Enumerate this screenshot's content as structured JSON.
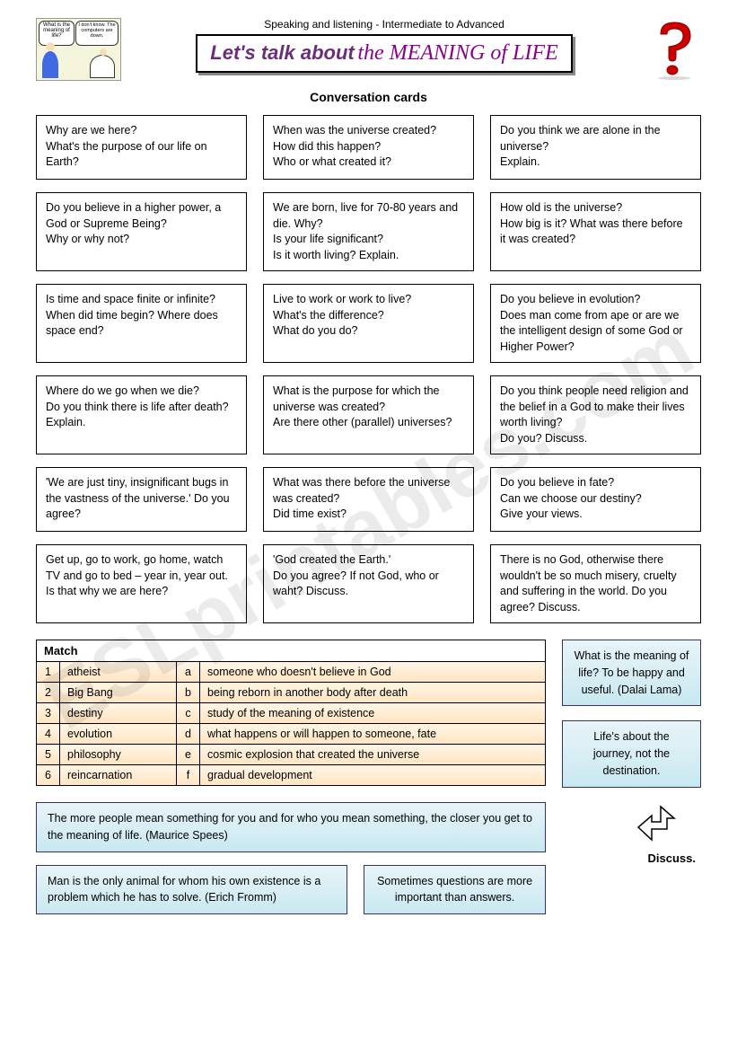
{
  "header": {
    "subtitle": "Speaking and listening - Intermediate to Advanced",
    "title_lead": "Let's talk about",
    "title_script": "the MEANING of LIFE",
    "cartoon_bubble1": "What is the meaning of life?",
    "cartoon_bubble2": "I don't know. The computers are down."
  },
  "section_title": "Conversation cards",
  "cards": [
    "Why are we here?\nWhat's the purpose of our life on Earth?",
    "When was the universe created?\nHow did this happen?\nWho or what created it?",
    "Do you think we are alone in the universe?\nExplain.",
    "Do you believe in a higher power, a God or Supreme Being?\nWhy or why not?",
    "We are born, live for 70-80 years and die. Why?\nIs your life significant?\nIs it worth living? Explain.",
    "How old is the universe?\nHow big is it? What was there before it was created?",
    "Is time and space finite or infinite? When did time begin? Where does space end?",
    "Live to work or work to live?\nWhat's the difference?\nWhat do you do?",
    "Do you believe in evolution?\nDoes man come from ape or are we the intelligent design of some God or Higher Power?",
    "Where do we go when we die?\nDo you think there is life after death? Explain.",
    "What is the purpose for which the universe was created?\nAre there other (parallel) universes?",
    "Do you think people need religion and the belief in a God to make their lives worth living?\nDo you? Discuss.",
    "'We are just tiny, insignificant bugs in the vastness of the universe.' Do you agree?",
    "What was there before the universe was created?\nDid time exist?",
    "Do you believe in fate?\nCan we choose our destiny?\nGive your views.",
    "Get up, go to work, go home, watch TV and go to bed – year in, year out.\nIs that why we are here?",
    "'God created the Earth.'\nDo you agree? If not God, who or waht? Discuss.",
    "There is no God, otherwise there wouldn't be so much misery, cruelty and suffering in the world. Do you agree? Discuss."
  ],
  "match": {
    "title": "Match",
    "rows": [
      {
        "n": "1",
        "term": "atheist",
        "l": "a",
        "def": "someone who doesn't believe in God"
      },
      {
        "n": "2",
        "term": "Big Bang",
        "l": "b",
        "def": "being reborn in another body after death"
      },
      {
        "n": "3",
        "term": "destiny",
        "l": "c",
        "def": "study of the meaning of existence"
      },
      {
        "n": "4",
        "term": "evolution",
        "l": "d",
        "def": "what happens or will happen to someone, fate"
      },
      {
        "n": "5",
        "term": "philosophy",
        "l": "e",
        "def": "cosmic explosion that created the universe"
      },
      {
        "n": "6",
        "term": "reincarnation",
        "l": "f",
        "def": "gradual development"
      }
    ]
  },
  "quotes": {
    "dalai": "What is the meaning of life? To be happy and useful. (Dalai Lama)",
    "journey": "Life's about the journey, not the destination.",
    "spees": "The more people mean something for you and for who you mean something, the closer you get to the meaning of life. (Maurice Spees)",
    "fromm": "Man is the only animal for whom his own existence is a problem which he has to solve. (Erich Fromm)",
    "questions": "Sometimes questions are more important than answers."
  },
  "discuss": "Discuss.",
  "watermark": "ESLprintables.com",
  "colors": {
    "title": "#6b2e7a",
    "script": "#8b008b",
    "quote_bg_top": "#e8f4f8",
    "quote_bg_bot": "#c8e8f0",
    "match_bg_top": "#fff5e6",
    "match_bg_bot": "#ffe4c0",
    "qmark": "#cc0000"
  }
}
